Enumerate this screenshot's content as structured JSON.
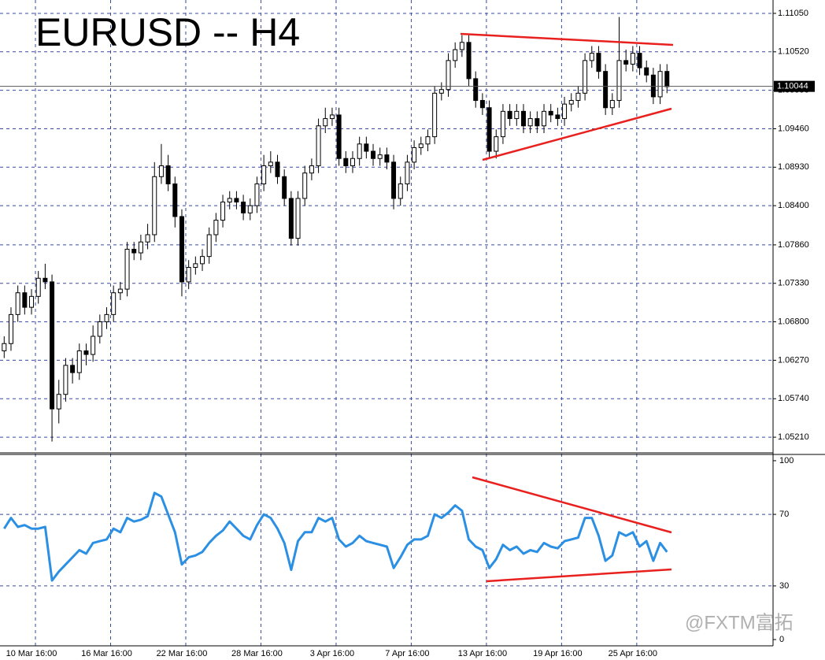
{
  "chart_data": [
    {
      "type": "candlestick",
      "title": "EURUSD -- H4",
      "categories": [
        null,
        null,
        null,
        null,
        "10 Mar 16:00",
        null,
        null,
        null,
        null,
        null,
        null,
        null,
        null,
        null,
        null,
        "16 Mar 16:00",
        null,
        null,
        null,
        null,
        null,
        null,
        null,
        null,
        null,
        null,
        "22 Mar 16:00",
        null,
        null,
        null,
        null,
        null,
        null,
        null,
        null,
        null,
        null,
        "28 Mar 16:00",
        null,
        null,
        null,
        null,
        null,
        null,
        null,
        null,
        null,
        null,
        "3 Apr 16:00",
        null,
        null,
        null,
        null,
        null,
        null,
        null,
        null,
        null,
        null,
        "7 Apr 16:00",
        null,
        null,
        null,
        null,
        null,
        null,
        null,
        null,
        null,
        null,
        "13 Apr 16:00",
        null,
        null,
        null,
        null,
        null,
        null,
        null,
        null,
        null,
        null,
        "19 Apr 16:00",
        null,
        null,
        null,
        null,
        null,
        null,
        null,
        null,
        null,
        null,
        "25 Apr 16:00",
        null,
        null,
        null,
        null,
        null
      ],
      "open": [
        1.064,
        1.065,
        1.069,
        1.072,
        1.07,
        1.0715,
        1.074,
        1.0735,
        1.056,
        1.058,
        1.062,
        1.061,
        1.064,
        1.0635,
        1.066,
        1.068,
        1.069,
        1.072,
        1.0725,
        1.078,
        1.0775,
        1.079,
        1.08,
        1.088,
        1.0895,
        1.087,
        1.0825,
        1.0735,
        1.0755,
        1.076,
        1.077,
        1.08,
        1.082,
        1.0845,
        1.085,
        1.0845,
        1.083,
        1.084,
        1.087,
        1.0895,
        1.09,
        1.088,
        1.085,
        1.0795,
        1.085,
        1.0885,
        1.0895,
        1.095,
        1.096,
        1.0965,
        1.0905,
        1.0895,
        1.0905,
        1.0925,
        1.0915,
        1.0905,
        1.091,
        1.09,
        1.085,
        1.087,
        1.09,
        1.092,
        1.0925,
        1.0935,
        1.0995,
        1.1,
        1.104,
        1.1055,
        1.1065,
        1.1015,
        1.0985,
        1.0975,
        1.0915,
        1.0935,
        1.097,
        1.096,
        1.097,
        1.095,
        1.096,
        1.095,
        1.097,
        1.0965,
        1.096,
        1.098,
        1.0985,
        1.0995,
        1.104,
        1.105,
        1.1025,
        1.0975,
        1.0985,
        1.104,
        1.1035,
        1.105,
        1.103,
        1.102,
        1.099,
        1.1025
      ],
      "high": [
        1.066,
        1.07,
        1.073,
        1.073,
        1.0725,
        1.075,
        1.076,
        1.0745,
        1.06,
        1.063,
        1.063,
        1.065,
        1.065,
        1.0675,
        1.069,
        1.07,
        1.073,
        1.0735,
        1.079,
        1.079,
        1.08,
        1.0815,
        1.09,
        1.0925,
        1.091,
        1.088,
        1.0835,
        1.0765,
        1.077,
        1.078,
        1.081,
        1.083,
        1.0855,
        1.086,
        1.086,
        1.0855,
        1.085,
        1.088,
        1.091,
        1.0915,
        1.091,
        1.089,
        1.086,
        1.086,
        1.0895,
        1.0905,
        1.096,
        1.0975,
        1.0975,
        1.0975,
        1.0915,
        1.0915,
        1.0935,
        1.0935,
        1.0925,
        1.092,
        1.092,
        1.091,
        1.088,
        1.091,
        1.093,
        1.0935,
        1.0945,
        1.1005,
        1.101,
        1.105,
        1.1065,
        1.1075,
        1.1075,
        1.1025,
        1.0995,
        1.0985,
        1.0945,
        1.098,
        1.098,
        1.098,
        1.098,
        1.097,
        1.097,
        1.098,
        1.098,
        1.0975,
        1.099,
        1.0995,
        1.1005,
        1.105,
        1.106,
        1.106,
        1.1035,
        1.0995,
        1.11,
        1.1055,
        1.106,
        1.106,
        1.104,
        1.103,
        1.1035,
        1.1035
      ],
      "low": [
        1.063,
        1.064,
        1.068,
        1.069,
        1.069,
        1.0705,
        1.0725,
        1.0515,
        1.054,
        1.057,
        1.0595,
        1.06,
        1.062,
        1.0625,
        1.065,
        1.067,
        1.068,
        1.071,
        1.0715,
        1.0765,
        1.0765,
        1.078,
        1.079,
        1.087,
        1.086,
        1.081,
        1.0715,
        1.0725,
        1.0745,
        1.075,
        1.076,
        1.079,
        1.081,
        1.0835,
        1.0835,
        1.082,
        1.082,
        1.083,
        1.086,
        1.0885,
        1.087,
        1.084,
        1.0785,
        1.0785,
        1.084,
        1.0875,
        1.0885,
        1.094,
        1.095,
        1.0895,
        1.0885,
        1.0885,
        1.0895,
        1.0905,
        1.0895,
        1.0895,
        1.089,
        1.0835,
        1.084,
        1.086,
        1.089,
        1.091,
        1.0915,
        1.0925,
        1.0985,
        1.099,
        1.103,
        1.1045,
        1.1005,
        1.0975,
        1.0965,
        1.0905,
        1.0905,
        1.0925,
        1.095,
        1.095,
        1.094,
        1.094,
        1.094,
        1.094,
        1.0955,
        1.095,
        1.095,
        1.097,
        1.0975,
        1.0985,
        1.103,
        1.1015,
        1.0965,
        1.0965,
        1.0975,
        1.1025,
        1.1025,
        1.102,
        1.101,
        1.098,
        1.098,
        1.0995
      ],
      "close": [
        1.065,
        1.069,
        1.072,
        1.07,
        1.0715,
        1.074,
        1.0735,
        1.056,
        1.058,
        1.062,
        1.061,
        1.064,
        1.0635,
        1.066,
        1.068,
        1.069,
        1.072,
        1.0725,
        1.078,
        1.0775,
        1.079,
        1.08,
        1.088,
        1.0895,
        1.087,
        1.0825,
        1.0735,
        1.0755,
        1.076,
        1.077,
        1.08,
        1.082,
        1.0845,
        1.085,
        1.0845,
        1.083,
        1.084,
        1.087,
        1.0895,
        1.09,
        1.088,
        1.085,
        1.0795,
        1.085,
        1.0885,
        1.0895,
        1.095,
        1.096,
        1.0965,
        1.0905,
        1.0895,
        1.0905,
        1.0925,
        1.0915,
        1.0905,
        1.091,
        1.09,
        1.085,
        1.087,
        1.09,
        1.092,
        1.0925,
        1.0935,
        1.0995,
        1.1,
        1.104,
        1.1055,
        1.1065,
        1.1015,
        1.0985,
        1.0975,
        1.0915,
        1.0935,
        1.097,
        1.096,
        1.097,
        1.095,
        1.096,
        1.095,
        1.097,
        1.0965,
        1.096,
        1.098,
        1.0985,
        1.0995,
        1.104,
        1.105,
        1.1025,
        1.0975,
        1.0985,
        1.104,
        1.1035,
        1.105,
        1.103,
        1.102,
        1.099,
        1.1025,
        1.1004
      ],
      "current_price": {
        "value": 1.10044,
        "label": "1.10044"
      },
      "ylim": [
        1.04994,
        1.11234
      ],
      "yticks": [
        {
          "value": 1.1105,
          "label": "1.11050"
        },
        {
          "value": 1.1052,
          "label": "1.10520"
        },
        {
          "value": 1.0999,
          "label": "1.09990"
        },
        {
          "value": 1.0946,
          "label": "1.09460"
        },
        {
          "value": 1.0893,
          "label": "1.08930"
        },
        {
          "value": 1.084,
          "label": "1.08400"
        },
        {
          "value": 1.0786,
          "label": "1.07860"
        },
        {
          "value": 1.0733,
          "label": "1.07330"
        },
        {
          "value": 1.068,
          "label": "1.06800"
        },
        {
          "value": 1.0627,
          "label": "1.06270"
        },
        {
          "value": 1.0574,
          "label": "1.05740"
        },
        {
          "value": 1.0521,
          "label": "1.05210"
        }
      ],
      "grid": true,
      "up_color": "#ffffff",
      "down_color": "#000000"
    },
    {
      "type": "line",
      "values": [
        62,
        68,
        63,
        64,
        62,
        62,
        63,
        33,
        38,
        42,
        46,
        50,
        48,
        54,
        55,
        56,
        62,
        60,
        68,
        66,
        67,
        69,
        82,
        80,
        70,
        60,
        42,
        46,
        47,
        49,
        54,
        58,
        61,
        66,
        62,
        58,
        56,
        64,
        70,
        68,
        62,
        54,
        39,
        55,
        60,
        60,
        68,
        66,
        68,
        56,
        52,
        54,
        58,
        55,
        54,
        53,
        52,
        40,
        46,
        53,
        56,
        56,
        58,
        70,
        68,
        71,
        75,
        72,
        56,
        52,
        50,
        40,
        45,
        53,
        50,
        52,
        48,
        50,
        49,
        54,
        52,
        51,
        55,
        56,
        57,
        68,
        68,
        58,
        44,
        47,
        60,
        58,
        60,
        52,
        55,
        44,
        54,
        49
      ],
      "color": "#2b8fe3",
      "ylim": [
        -3.5,
        103.5
      ],
      "yticks": [
        0,
        30,
        70,
        100
      ],
      "grid": true
    }
  ],
  "watermark": "@FXTM富拓"
}
